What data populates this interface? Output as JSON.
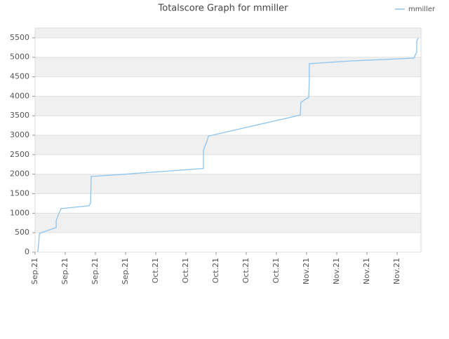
{
  "chart_data": {
    "type": "line",
    "title": "Totalscore Graph for mmiller",
    "x": [
      0.09,
      0.12,
      0.14,
      0.16,
      0.7,
      0.7,
      0.79,
      0.86,
      0.88,
      1.79,
      1.84,
      1.86,
      1.98,
      3.02,
      5.58,
      5.58,
      5.65,
      5.7,
      5.74,
      8.79,
      8.81,
      8.98,
      9.07,
      9.09,
      9.09,
      9.4,
      10.47,
      12.56,
      12.65,
      12.65,
      12.7
    ],
    "series": [
      {
        "name": "mmiller",
        "color": "#8cc4f0",
        "values": [
          0,
          216,
          450,
          487,
          631,
          812,
          992,
          1118,
          1118,
          1190,
          1262,
          1948,
          1948,
          2002,
          2146,
          2615,
          2759,
          2849,
          2976,
          3517,
          3841,
          3931,
          3967,
          4436,
          4833,
          4851,
          4905,
          4977,
          5140,
          5410,
          5500
        ]
      }
    ],
    "xlim": [
      0,
      12.79
    ],
    "xticks": [
      {
        "value": 0,
        "label": "Sep.21"
      },
      {
        "value": 1,
        "label": "Sep.21"
      },
      {
        "value": 2,
        "label": "Sep.21"
      },
      {
        "value": 3,
        "label": "Sep.21"
      },
      {
        "value": 4,
        "label": "Oct.21"
      },
      {
        "value": 5,
        "label": "Oct.21"
      },
      {
        "value": 6,
        "label": "Oct.21"
      },
      {
        "value": 7,
        "label": "Oct.21"
      },
      {
        "value": 8,
        "label": "Oct.21"
      },
      {
        "value": 9,
        "label": "Nov.21"
      },
      {
        "value": 10,
        "label": "Nov.21"
      },
      {
        "value": 11,
        "label": "Nov.21"
      },
      {
        "value": 12,
        "label": "Nov.21"
      }
    ],
    "ylim": [
      0,
      5750
    ],
    "yticks": [
      0,
      500,
      1000,
      1500,
      2000,
      2500,
      3000,
      3500,
      4000,
      4500,
      5000,
      5500
    ],
    "grid": true,
    "legend": "top-right"
  }
}
